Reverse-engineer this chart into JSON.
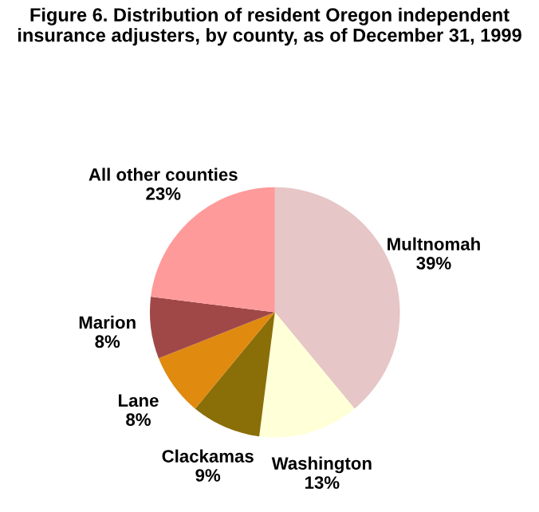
{
  "chart_data": {
    "type": "pie",
    "title": "Figure 6. Distribution of resident Oregon independent insurance adjusters, by county, as of December 31, 1999",
    "categories": [
      "Multnomah",
      "Washington",
      "Clackamas",
      "Lane",
      "Marion",
      "All other counties"
    ],
    "values": [
      39,
      13,
      9,
      8,
      8,
      23
    ],
    "value_labels": [
      "39%",
      "13%",
      "9%",
      "8%",
      "8%",
      "23%"
    ],
    "colors": [
      "#e6c6c6",
      "#ffffd8",
      "#8a6e08",
      "#e08a10",
      "#a04848",
      "#ff9a9a"
    ],
    "legend": false
  }
}
